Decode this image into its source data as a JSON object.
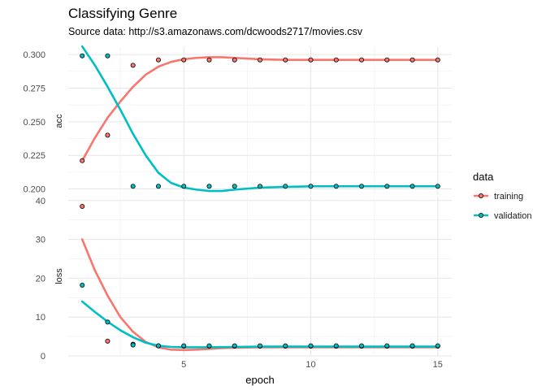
{
  "chart_data": {
    "type": "line",
    "title": "Classifying Genre",
    "subtitle": "Source data: http://s3.amazonaws.com/dcwoods2717/movies.csv",
    "xlabel": "epoch",
    "x": [
      1,
      2,
      3,
      4,
      5,
      6,
      7,
      8,
      9,
      10,
      11,
      12,
      13,
      14,
      15
    ],
    "x_ticks": [
      5,
      10,
      15
    ],
    "xlim": [
      0.45,
      15.55
    ],
    "grid": true,
    "legend": {
      "title": "data",
      "placement": "right",
      "entries": [
        "training",
        "validation"
      ]
    },
    "panels": [
      {
        "strip": "acc",
        "ylim": [
          0.1955,
          0.3055
        ],
        "y_ticks": [
          0.2,
          0.225,
          0.25,
          0.275,
          0.3
        ],
        "y_tick_labels": [
          "0.200",
          "0.225",
          "0.250",
          "0.275",
          "0.300"
        ],
        "series": [
          {
            "name": "training",
            "color": "#F8766D",
            "values": [
              0.221,
              0.24,
              0.292,
              0.296,
              0.296,
              0.296,
              0.296,
              0.296,
              0.296,
              0.296,
              0.296,
              0.296,
              0.296,
              0.296,
              0.296
            ],
            "smooth": [
              [
                1,
                0.221
              ],
              [
                1.5,
                0.238
              ],
              [
                2,
                0.253
              ],
              [
                2.5,
                0.265
              ],
              [
                3,
                0.276
              ],
              [
                3.5,
                0.285
              ],
              [
                4,
                0.291
              ],
              [
                4.5,
                0.2945
              ],
              [
                5,
                0.2965
              ],
              [
                5.5,
                0.2975
              ],
              [
                6,
                0.298
              ],
              [
                6.5,
                0.298
              ],
              [
                7,
                0.2975
              ],
              [
                8,
                0.2965
              ],
              [
                9,
                0.296
              ],
              [
                10,
                0.296
              ],
              [
                12,
                0.296
              ],
              [
                15,
                0.296
              ]
            ]
          },
          {
            "name": "validation",
            "color": "#00BFC4",
            "values": [
              0.299,
              0.299,
              0.202,
              0.202,
              0.202,
              0.202,
              0.202,
              0.202,
              0.202,
              0.202,
              0.202,
              0.202,
              0.202,
              0.202,
              0.202
            ],
            "smooth": [
              [
                1,
                0.306
              ],
              [
                1.5,
                0.292
              ],
              [
                2,
                0.276
              ],
              [
                2.5,
                0.259
              ],
              [
                3,
                0.241
              ],
              [
                3.5,
                0.225
              ],
              [
                4,
                0.212
              ],
              [
                4.5,
                0.2045
              ],
              [
                5,
                0.201
              ],
              [
                5.5,
                0.1995
              ],
              [
                6,
                0.1985
              ],
              [
                6.5,
                0.1985
              ],
              [
                7,
                0.1995
              ],
              [
                8,
                0.201
              ],
              [
                9,
                0.2015
              ],
              [
                10,
                0.202
              ],
              [
                12,
                0.202
              ],
              [
                15,
                0.202
              ]
            ]
          }
        ]
      },
      {
        "strip": "loss",
        "ylim": [
          0,
          41
        ],
        "y_ticks": [
          0,
          10,
          20,
          30,
          40
        ],
        "y_tick_labels": [
          "0",
          "10",
          "20",
          "30",
          "40"
        ],
        "series": [
          {
            "name": "training",
            "color": "#F8766D",
            "values": [
              38.5,
              3.8,
              3.0,
              2.6,
              2.5,
              2.5,
              2.5,
              2.5,
              2.5,
              2.5,
              2.5,
              2.5,
              2.5,
              2.5,
              2.5
            ],
            "smooth": [
              [
                1,
                30
              ],
              [
                1.5,
                22
              ],
              [
                2,
                15.5
              ],
              [
                2.5,
                10
              ],
              [
                3,
                6.2
              ],
              [
                3.5,
                3.6
              ],
              [
                4,
                2.2
              ],
              [
                4.5,
                1.6
              ],
              [
                5,
                1.5
              ],
              [
                5.5,
                1.6
              ],
              [
                6,
                1.8
              ],
              [
                6.5,
                2.0
              ],
              [
                7,
                2.1
              ],
              [
                8,
                2.2
              ],
              [
                10,
                2.2
              ],
              [
                12,
                2.2
              ],
              [
                15,
                2.2
              ]
            ]
          },
          {
            "name": "validation",
            "color": "#00BFC4",
            "values": [
              18.2,
              8.7,
              2.8,
              2.6,
              2.6,
              2.6,
              2.6,
              2.6,
              2.6,
              2.6,
              2.6,
              2.6,
              2.6,
              2.6,
              2.6
            ],
            "smooth": [
              [
                1,
                14
              ],
              [
                1.5,
                11.3
              ],
              [
                2,
                8.8
              ],
              [
                2.5,
                6.6
              ],
              [
                3,
                4.8
              ],
              [
                3.5,
                3.4
              ],
              [
                4,
                2.6
              ],
              [
                4.5,
                2.3
              ],
              [
                5,
                2.2
              ],
              [
                6,
                2.2
              ],
              [
                7,
                2.3
              ],
              [
                8,
                2.4
              ],
              [
                10,
                2.4
              ],
              [
                12,
                2.4
              ],
              [
                15,
                2.4
              ]
            ]
          }
        ]
      }
    ]
  }
}
